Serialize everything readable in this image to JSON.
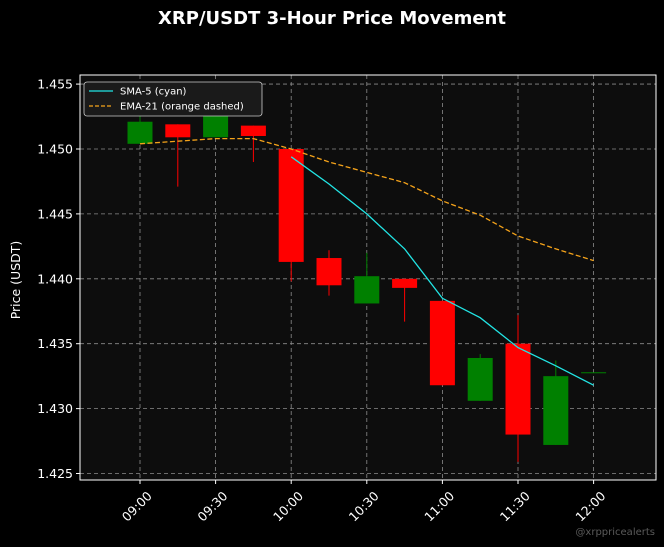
{
  "colors": {
    "background": "#000000",
    "plot_background": "#0d0d0d",
    "grid": "#8c8c8c",
    "up_candle": "#008000",
    "down_candle": "#ff0000",
    "sma": "#22e5e5",
    "ema": "#f5a31a",
    "text": "#ffffff",
    "watermark": "#5a5a5a"
  },
  "watermark": "@xrppricealerts",
  "chart_data": {
    "type": "candlestick",
    "title": "XRP/USDT 3-Hour Price Movement",
    "xlabel": "",
    "ylabel": "Price (USDT)",
    "ylim": [
      1.4245,
      1.4557
    ],
    "yticks": [
      "1.425",
      "1.430",
      "1.435",
      "1.440",
      "1.445",
      "1.450",
      "1.455"
    ],
    "xticks": [
      "09:00",
      "09:30",
      "10:00",
      "10:30",
      "11:00",
      "11:30",
      "12:00"
    ],
    "grid": true,
    "legend_position": "top-left",
    "candles": [
      {
        "time": "09:00",
        "open": 1.4504,
        "high": 1.4528,
        "low": 1.4504,
        "close": 1.4521
      },
      {
        "time": "09:15",
        "open": 1.4519,
        "high": 1.4519,
        "low": 1.4471,
        "close": 1.4509
      },
      {
        "time": "09:30",
        "open": 1.4509,
        "high": 1.4539,
        "low": 1.4509,
        "close": 1.4527
      },
      {
        "time": "09:45",
        "open": 1.4518,
        "high": 1.4518,
        "low": 1.449,
        "close": 1.451
      },
      {
        "time": "10:00",
        "open": 1.45,
        "high": 1.45,
        "low": 1.4398,
        "close": 1.4413
      },
      {
        "time": "10:15",
        "open": 1.4416,
        "high": 1.4422,
        "low": 1.4387,
        "close": 1.4395
      },
      {
        "time": "10:30",
        "open": 1.4381,
        "high": 1.442,
        "low": 1.4381,
        "close": 1.4402
      },
      {
        "time": "10:45",
        "open": 1.44,
        "high": 1.44,
        "low": 1.4367,
        "close": 1.4393
      },
      {
        "time": "11:00",
        "open": 1.4383,
        "high": 1.4383,
        "low": 1.4318,
        "close": 1.4318
      },
      {
        "time": "11:15",
        "open": 1.4306,
        "high": 1.4342,
        "low": 1.4306,
        "close": 1.4339
      },
      {
        "time": "11:30",
        "open": 1.435,
        "high": 1.4372,
        "low": 1.4259,
        "close": 1.428
      },
      {
        "time": "11:45",
        "open": 1.4272,
        "high": 1.4337,
        "low": 1.4272,
        "close": 1.4325
      },
      {
        "time": "12:00",
        "open": 1.4328,
        "high": 1.4328,
        "low": 1.4328,
        "close": 1.4328
      }
    ],
    "series": [
      {
        "name": "SMA-5 (cyan)",
        "style": "solid",
        "x": [
          "10:00",
          "10:15",
          "10:30",
          "10:45",
          "11:00",
          "11:15",
          "11:30",
          "11:45",
          "12:00"
        ],
        "values": [
          1.4494,
          1.4473,
          1.445,
          1.4423,
          1.4385,
          1.437,
          1.4347,
          1.4333,
          1.4318
        ]
      },
      {
        "name": "EMA-21 (orange dashed)",
        "style": "dashed",
        "x": [
          "09:00",
          "09:15",
          "09:30",
          "09:45",
          "10:00",
          "10:15",
          "10:30",
          "10:45",
          "11:00",
          "11:15",
          "11:30",
          "11:45",
          "12:00"
        ],
        "values": [
          1.4504,
          1.4506,
          1.4508,
          1.4508,
          1.45,
          1.449,
          1.4482,
          1.4474,
          1.446,
          1.4449,
          1.4433,
          1.4423,
          1.4414
        ]
      }
    ]
  }
}
